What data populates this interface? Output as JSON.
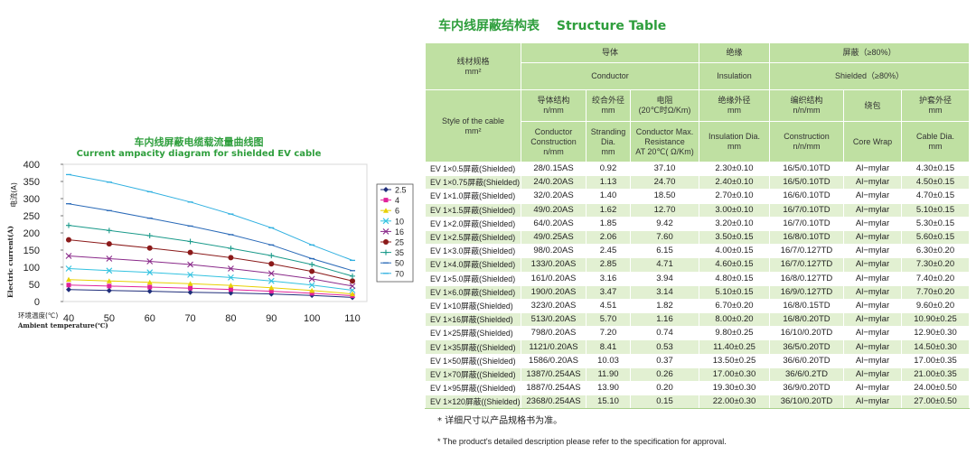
{
  "chart": {
    "title": "车内线屏蔽电缆载流量曲线图",
    "subtitle": "Current ampacity diagram for shielded EV cable",
    "ylabel_cn": "电流(A)",
    "ylabel_en": "Electric current(A)",
    "xlabel_cn": "环境温度(℃)",
    "xlabel_en": "Ambient temperature(℃)"
  },
  "chart_data": {
    "type": "line",
    "x": [
      40,
      50,
      60,
      70,
      80,
      90,
      100,
      110
    ],
    "xlim": [
      40,
      110
    ],
    "ylim": [
      0,
      400
    ],
    "xticks": [
      "40",
      "50",
      "60",
      "70",
      "80",
      "90",
      "100",
      "110"
    ],
    "yticks": [
      "0",
      "50",
      "100",
      "150",
      "200",
      "250",
      "300",
      "350",
      "400"
    ],
    "grid": false,
    "legend_position": "right",
    "series": [
      {
        "name": "2.5",
        "color": "#1f2d7a",
        "marker": "diamond",
        "values": [
          35,
          32,
          30,
          27,
          25,
          22,
          18,
          12
        ]
      },
      {
        "name": "4",
        "color": "#e0239b",
        "marker": "square",
        "values": [
          48,
          45,
          42,
          39,
          35,
          30,
          24,
          17
        ]
      },
      {
        "name": "6",
        "color": "#e8d000",
        "marker": "triangle",
        "values": [
          64,
          60,
          56,
          52,
          47,
          40,
          32,
          22
        ]
      },
      {
        "name": "10",
        "color": "#32c2e0",
        "marker": "x",
        "values": [
          96,
          90,
          85,
          78,
          70,
          60,
          48,
          33
        ]
      },
      {
        "name": "16",
        "color": "#8a2a8a",
        "marker": "x",
        "values": [
          133,
          125,
          117,
          108,
          96,
          82,
          66,
          45
        ]
      },
      {
        "name": "25",
        "color": "#8b1a1a",
        "marker": "circle",
        "values": [
          180,
          168,
          156,
          143,
          128,
          110,
          88,
          60
        ]
      },
      {
        "name": "35",
        "color": "#1a9a8a",
        "marker": "plus",
        "values": [
          222,
          207,
          192,
          175,
          155,
          134,
          108,
          74
        ]
      },
      {
        "name": "50",
        "color": "#2a6ab8",
        "marker": "dash",
        "values": [
          285,
          265,
          243,
          220,
          195,
          165,
          125,
          90
        ]
      },
      {
        "name": "70",
        "color": "#30b0e0",
        "marker": "dash",
        "values": [
          370,
          348,
          320,
          290,
          255,
          215,
          165,
          120
        ]
      }
    ]
  },
  "table": {
    "title_cn": "车内线屏蔽结构表",
    "title_en": "Structure Table",
    "headers": {
      "spec_cn": "线材规格",
      "spec_unit": "mm²",
      "conductor_cn": "导体",
      "conductor_en": "Conductor",
      "insulation_cn": "绝缘",
      "insulation_en": "Insulation",
      "shield_cn": "屏蔽（≥80%）",
      "shield_en": "Shielded（≥80%）",
      "style": "Style of the cable",
      "style_unit": "mm²",
      "c1_cn": "导体结构",
      "c1_unit": "n/mm",
      "c1_en": "Conductor Construction",
      "c1_en_unit": "n/mm",
      "c2_cn": "绞合外径",
      "c2_unit": "mm",
      "c2_en": "Stranding Dia.",
      "c2_en_unit": "mm",
      "c3_cn": "电阻",
      "c3_unit": "(20℃时Ω/Km)",
      "c3_en": "Conductor Max. Resistance",
      "c3_en_unit": "AT 20℃( Ω/Km)",
      "c4_cn": "绝缘外径",
      "c4_unit": "mm",
      "c4_en": "Insulation Dia.",
      "c4_en_unit": "mm",
      "c5_cn": "编织结构",
      "c5_unit": "n/n/mm",
      "c5_en": "Construction",
      "c5_en_unit": "n/n/mm",
      "c6_cn": "绕包",
      "c6_en": "Core Wrap",
      "c7_cn": "护套外径",
      "c7_unit": "mm",
      "c7_en": "Cable Dia.",
      "c7_en_unit": "mm"
    },
    "rows": [
      [
        "EV 1×0.5屏蔽(Shielded)",
        "28/0.15AS",
        "0.92",
        "37.10",
        "2.30±0.10",
        "16/5/0.10TD",
        "Al−mylar",
        "4.30±0.15"
      ],
      [
        "EV 1×0.75屏蔽(Shielded)",
        "24/0.20AS",
        "1.13",
        "24.70",
        "2.40±0.10",
        "16/5/0.10TD",
        "Al−mylar",
        "4.50±0.15"
      ],
      [
        "EV 1×1.0屏蔽(Shielded)",
        "32/0.20AS",
        "1.40",
        "18.50",
        "2.70±0.10",
        "16/6/0.10TD",
        "Al−mylar",
        "4.70±0.15"
      ],
      [
        "EV 1×1.5屏蔽(Shielded)",
        "49/0.20AS",
        "1.62",
        "12.70",
        "3.00±0.10",
        "16/7/0.10TD",
        "Al−mylar",
        "5.10±0.15"
      ],
      [
        "EV 1×2.0屏蔽(Shielded)",
        "64/0.20AS",
        "1.85",
        "9.42",
        "3.20±0.10",
        "16/7/0.10TD",
        "Al−mylar",
        "5.30±0.15"
      ],
      [
        "EV 1×2.5屏蔽(Shielded)",
        "49/0.25AS",
        "2.06",
        "7.60",
        "3.50±0.15",
        "16/8/0.10TD",
        "Al−mylar",
        "5.60±0.15"
      ],
      [
        "EV 1×3.0屏蔽(Shielded)",
        "98/0.20AS",
        "2.45",
        "6.15",
        "4.00±0.15",
        "16/7/0.127TD",
        "Al−mylar",
        "6.30±0.20"
      ],
      [
        "EV 1×4.0屏蔽(Shielded)",
        "133/0.20AS",
        "2.85",
        "4.71",
        "4.60±0.15",
        "16/7/0.127TD",
        "Al−mylar",
        "7.30±0.20"
      ],
      [
        "EV 1×5.0屏蔽(Shielded)",
        "161/0.20AS",
        "3.16",
        "3.94",
        "4.80±0.15",
        "16/8/0.127TD",
        "Al−mylar",
        "7.40±0.20"
      ],
      [
        "EV 1×6.0屏蔽(Shielded)",
        "190/0.20AS",
        "3.47",
        "3.14",
        "5.10±0.15",
        "16/9/0.127TD",
        "Al−mylar",
        "7.70±0.20"
      ],
      [
        "EV 1×10屏蔽(Shielded)",
        "323/0.20AS",
        "4.51",
        "1.82",
        "6.70±0.20",
        "16/8/0.15TD",
        "Al−mylar",
        "9.60±0.20"
      ],
      [
        "EV 1×16屏蔽(Shielded)",
        "513/0.20AS",
        "5.70",
        "1.16",
        "8.00±0.20",
        "16/8/0.20TD",
        "Al−mylar",
        "10.90±0.25"
      ],
      [
        "EV 1×25屏蔽(Shielded)",
        "798/0.20AS",
        "7.20",
        "0.74",
        "9.80±0.25",
        "16/10/0.20TD",
        "Al−mylar",
        "12.90±0.30"
      ],
      [
        "EV 1×35屏蔽((Shielded)",
        "1121/0.20AS",
        "8.41",
        "0.53",
        "11.40±0.25",
        "36/5/0.20TD",
        "Al−mylar",
        "14.50±0.30"
      ],
      [
        "EV 1×50屏蔽((Shielded)",
        "1586/0.20AS",
        "10.03",
        "0.37",
        "13.50±0.25",
        "36/6/0.20TD",
        "Al−mylar",
        "17.00±0.35"
      ],
      [
        "EV 1×70屏蔽((Shielded)",
        "1387/0.254AS",
        "11.90",
        "0.26",
        "17.00±0.30",
        "36/6/0.2TD",
        "Al−mylar",
        "21.00±0.35"
      ],
      [
        "EV 1×95屏蔽((Shielded)",
        "1887/0.254AS",
        "13.90",
        "0.20",
        "19.30±0.30",
        "36/9/0.20TD",
        "Al−mylar",
        "24.00±0.50"
      ],
      [
        "EV 1×120屏蔽((Shielded)",
        "2368/0.254AS",
        "15.10",
        "0.15",
        "22.00±0.30",
        "36/10/0.20TD",
        "Al−mylar",
        "27.00±0.50"
      ]
    ]
  },
  "notes": {
    "cn": "* 详细尺寸以产品规格书为准。",
    "en": "* The product's detailed description please refer to the specification for approval."
  }
}
